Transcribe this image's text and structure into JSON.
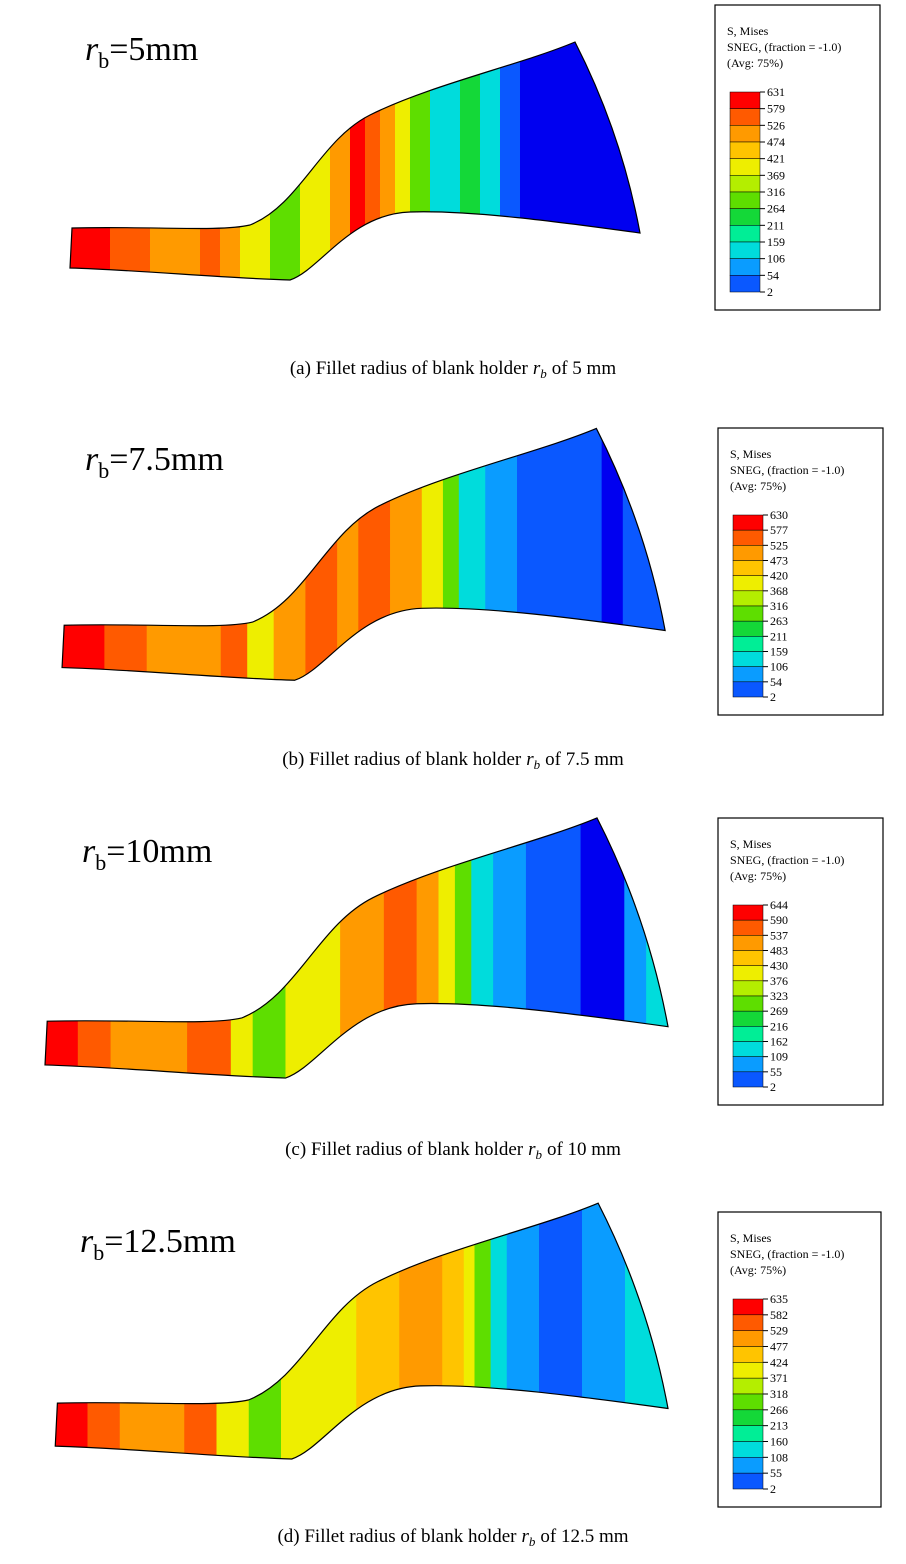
{
  "panels": [
    {
      "label": {
        "symbol": "r",
        "subscript": "b",
        "text": "=5mm"
      },
      "legend": {
        "title": [
          "S, Mises",
          "SNEG, (fraction = -1.0)",
          "(Avg: 75%)"
        ],
        "values": [
          631,
          579,
          526,
          474,
          421,
          369,
          316,
          264,
          211,
          159,
          106,
          54,
          2
        ]
      },
      "caption": {
        "prefix": "(a) Fillet radius of blank holder",
        "symbol": "r",
        "subscript": "b",
        "suffix": "of 5 mm"
      }
    },
    {
      "label": {
        "symbol": "r",
        "subscript": "b",
        "text": "=7.5mm"
      },
      "legend": {
        "title": [
          "S, Mises",
          "SNEG, (fraction = -1.0)",
          "(Avg: 75%)"
        ],
        "values": [
          630,
          577,
          525,
          473,
          420,
          368,
          316,
          263,
          211,
          159,
          106,
          54,
          2
        ]
      },
      "caption": {
        "prefix": "(b) Fillet radius of blank holder",
        "symbol": "r",
        "subscript": "b",
        "suffix": "of 7.5 mm"
      }
    },
    {
      "label": {
        "symbol": "r",
        "subscript": "b",
        "text": "=10mm"
      },
      "legend": {
        "title": [
          "S, Mises",
          "SNEG, (fraction = -1.0)",
          "(Avg: 75%)"
        ],
        "values": [
          644,
          590,
          537,
          483,
          430,
          376,
          323,
          269,
          216,
          162,
          109,
          55,
          2
        ]
      },
      "caption": {
        "prefix": "(c) Fillet radius of blank holder",
        "symbol": "r",
        "subscript": "b",
        "suffix": "of 10 mm"
      }
    },
    {
      "label": {
        "symbol": "r",
        "subscript": "b",
        "text": "=12.5mm"
      },
      "legend": {
        "title": [
          "S, Mises",
          "SNEG, (fraction = -1.0)",
          "(Avg: 75%)"
        ],
        "values": [
          635,
          582,
          529,
          477,
          424,
          371,
          318,
          266,
          213,
          160,
          108,
          55,
          2
        ]
      },
      "caption": {
        "prefix": "(d) Fillet radius of blank holder",
        "symbol": "r",
        "subscript": "b",
        "suffix": "of 12.5 mm"
      }
    }
  ]
}
